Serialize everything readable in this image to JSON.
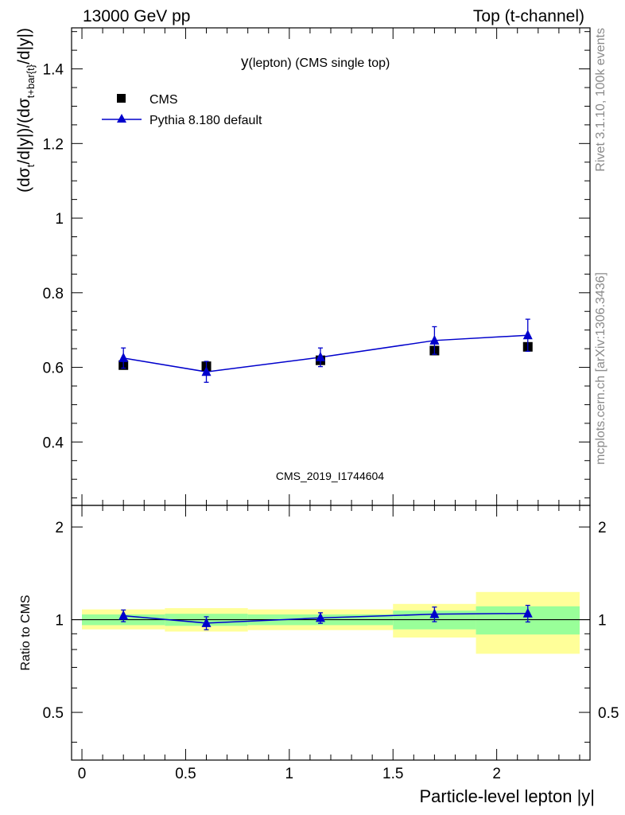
{
  "header": {
    "energy": "13000 GeV pp",
    "process": "Top (t-channel)"
  },
  "side_labels": {
    "rivet": "Rivet 3.1.10,  100k events",
    "mcplots": "mcplots.cern.ch [arXiv:1306.3436]"
  },
  "chart_data": [
    {
      "type": "scatter",
      "title_main": "y",
      "title_sub": "(lepton) (CMS single top)",
      "ylabel": "(dσ_t/d|y|)/(dσ_t+bar{t}/d|y|)",
      "watermark": "CMS_2019_I1744604",
      "xlim": [
        -0.05,
        2.45
      ],
      "ylim": [
        0.23,
        1.51
      ],
      "yticks": [
        "0.4",
        "0.6",
        "0.8",
        "1",
        "1.2",
        "1.4"
      ],
      "legend_position": "top-left",
      "legend": [
        {
          "label": "CMS",
          "marker": "square",
          "color": "#000000"
        },
        {
          "label": "Pythia 8.180 default",
          "marker": "triangle",
          "color": "#0000cc"
        }
      ],
      "series": [
        {
          "name": "CMS",
          "x": [
            0.2,
            0.6,
            1.15,
            1.7,
            2.15
          ],
          "y": [
            0.606,
            0.603,
            0.619,
            0.645,
            0.655
          ],
          "yerr": [
            0.004,
            0.004,
            0.004,
            0.004,
            0.004
          ]
        },
        {
          "name": "Pythia 8.180 default",
          "x": [
            0.2,
            0.6,
            1.15,
            1.7,
            2.15
          ],
          "y": [
            0.625,
            0.588,
            0.627,
            0.672,
            0.686
          ],
          "yerr": [
            0.027,
            0.028,
            0.025,
            0.037,
            0.043
          ]
        }
      ]
    },
    {
      "type": "scatter",
      "ylabel": "Ratio to CMS",
      "xlabel": "Particle-level lepton |y|",
      "xlim": [
        -0.05,
        2.45
      ],
      "ylim": [
        0.35,
        2.35
      ],
      "yticks": [
        "0.5",
        "1",
        "2"
      ],
      "xticks": [
        "0",
        "0.5",
        "1",
        "1.5",
        "2"
      ],
      "reference_line": 1,
      "bands": [
        {
          "x": [
            0.0,
            0.4
          ],
          "inner": [
            0.96,
            1.04
          ],
          "outer": [
            0.93,
            1.08
          ]
        },
        {
          "x": [
            0.4,
            0.8
          ],
          "inner": [
            0.955,
            1.045
          ],
          "outer": [
            0.915,
            1.09
          ]
        },
        {
          "x": [
            0.8,
            1.5
          ],
          "inner": [
            0.96,
            1.04
          ],
          "outer": [
            0.925,
            1.08
          ]
        },
        {
          "x": [
            1.5,
            1.9
          ],
          "inner": [
            0.93,
            1.07
          ],
          "outer": [
            0.875,
            1.125
          ]
        },
        {
          "x": [
            1.9,
            2.4
          ],
          "inner": [
            0.895,
            1.105
          ],
          "outer": [
            0.775,
            1.23
          ]
        }
      ],
      "series": [
        {
          "name": "Pythia 8.180 default",
          "x": [
            0.2,
            0.6,
            1.15,
            1.7,
            2.15
          ],
          "y": [
            1.03,
            0.975,
            1.013,
            1.042,
            1.048
          ],
          "yerr": [
            0.045,
            0.047,
            0.04,
            0.057,
            0.065
          ]
        }
      ]
    }
  ],
  "colors": {
    "data": "#000000",
    "mc": "#0000cc",
    "band_inner": "#99ff99",
    "band_outer": "#ffff99",
    "watermark": "#8a8a8a"
  }
}
